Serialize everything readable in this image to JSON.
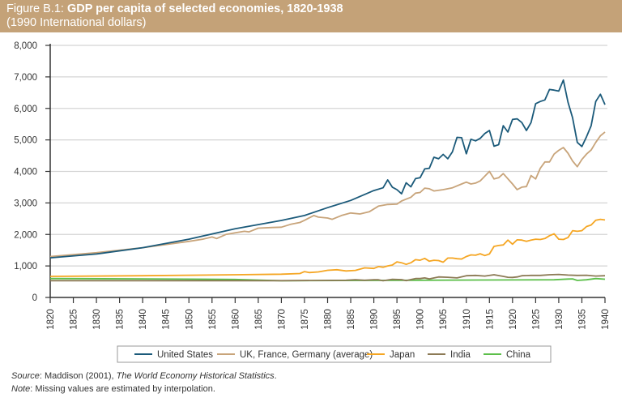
{
  "header": {
    "figure_label": "Figure B.1:",
    "title": "GDP per capita of selected economies, 1820-1938",
    "subtitle": "(1990 International dollars)",
    "background_color": "#c4a278"
  },
  "footer": {
    "source_label": "Source",
    "source_text_plain": ": Maddison (2001), ",
    "source_text_italic": "The World Economy Historical Statistics",
    "source_text_end": ".",
    "note_label": "Note",
    "note_text": ": Missing values are estimated by interpolation."
  },
  "chart_data": {
    "type": "line",
    "title": "GDP per capita of selected economies, 1820-1938",
    "subtitle": "(1990 International dollars)",
    "xlabel": "",
    "ylabel": "",
    "xlim": [
      1820,
      1940
    ],
    "ylim": [
      0,
      8000
    ],
    "yticks": [
      0,
      1000,
      2000,
      3000,
      4000,
      5000,
      6000,
      7000,
      8000
    ],
    "ytick_labels": [
      "0",
      "1,000",
      "2,000",
      "3,000",
      "4,000",
      "5,000",
      "6,000",
      "7,000",
      "8,000"
    ],
    "xticks": [
      1820,
      1825,
      1830,
      1835,
      1840,
      1845,
      1850,
      1855,
      1860,
      1865,
      1870,
      1875,
      1880,
      1885,
      1890,
      1895,
      1900,
      1905,
      1910,
      1915,
      1920,
      1925,
      1930,
      1935,
      1940
    ],
    "xtick_labels": [
      "1820",
      "1825",
      "1830",
      "1835",
      "1840",
      "1845",
      "1850",
      "1855",
      "1860",
      "1865",
      "1870",
      "1875",
      "1880",
      "1885",
      "1890",
      "1895",
      "1900",
      "1905",
      "1910",
      "1915",
      "1920",
      "1925",
      "1930",
      "1935",
      "1940"
    ],
    "grid": "horizontal",
    "legend_position": "bottom",
    "series": [
      {
        "name": "United States",
        "color": "#1b5a7a",
        "points": [
          [
            1820,
            1257
          ],
          [
            1830,
            1380
          ],
          [
            1840,
            1580
          ],
          [
            1850,
            1849
          ],
          [
            1860,
            2180
          ],
          [
            1870,
            2445
          ],
          [
            1875,
            2600
          ],
          [
            1880,
            2850
          ],
          [
            1885,
            3080
          ],
          [
            1890,
            3392
          ],
          [
            1892,
            3480
          ],
          [
            1893,
            3730
          ],
          [
            1894,
            3500
          ],
          [
            1895,
            3420
          ],
          [
            1896,
            3290
          ],
          [
            1897,
            3640
          ],
          [
            1898,
            3510
          ],
          [
            1899,
            3770
          ],
          [
            1900,
            3800
          ],
          [
            1901,
            4080
          ],
          [
            1902,
            4100
          ],
          [
            1903,
            4450
          ],
          [
            1904,
            4400
          ],
          [
            1905,
            4540
          ],
          [
            1906,
            4400
          ],
          [
            1907,
            4620
          ],
          [
            1908,
            5080
          ],
          [
            1909,
            5070
          ],
          [
            1910,
            4560
          ],
          [
            1911,
            5020
          ],
          [
            1912,
            4970
          ],
          [
            1913,
            5050
          ],
          [
            1914,
            5200
          ],
          [
            1915,
            5300
          ],
          [
            1916,
            4800
          ],
          [
            1917,
            4850
          ],
          [
            1918,
            5450
          ],
          [
            1919,
            5250
          ],
          [
            1920,
            5650
          ],
          [
            1921,
            5670
          ],
          [
            1922,
            5550
          ],
          [
            1923,
            5300
          ],
          [
            1924,
            5550
          ],
          [
            1925,
            6150
          ],
          [
            1926,
            6220
          ],
          [
            1927,
            6270
          ],
          [
            1928,
            6600
          ],
          [
            1929,
            6580
          ],
          [
            1930,
            6550
          ],
          [
            1931,
            6900
          ],
          [
            1932,
            6200
          ],
          [
            1933,
            5700
          ],
          [
            1934,
            4920
          ],
          [
            1935,
            4790
          ],
          [
            1936,
            5100
          ],
          [
            1937,
            5450
          ],
          [
            1938,
            6220
          ],
          [
            1939,
            6450
          ],
          [
            1940,
            6120
          ]
        ]
      },
      {
        "name": "UK, France, Germany (average)",
        "color": "#c8a47a",
        "points": [
          [
            1820,
            1300
          ],
          [
            1830,
            1420
          ],
          [
            1840,
            1580
          ],
          [
            1850,
            1780
          ],
          [
            1853,
            1850
          ],
          [
            1855,
            1920
          ],
          [
            1856,
            1870
          ],
          [
            1858,
            2000
          ],
          [
            1860,
            2050
          ],
          [
            1862,
            2100
          ],
          [
            1863,
            2080
          ],
          [
            1865,
            2200
          ],
          [
            1868,
            2220
          ],
          [
            1870,
            2230
          ],
          [
            1872,
            2320
          ],
          [
            1874,
            2380
          ],
          [
            1875,
            2450
          ],
          [
            1877,
            2600
          ],
          [
            1878,
            2550
          ],
          [
            1880,
            2520
          ],
          [
            1881,
            2480
          ],
          [
            1883,
            2600
          ],
          [
            1885,
            2680
          ],
          [
            1887,
            2650
          ],
          [
            1889,
            2720
          ],
          [
            1891,
            2900
          ],
          [
            1893,
            2950
          ],
          [
            1895,
            2960
          ],
          [
            1896,
            3060
          ],
          [
            1897,
            3120
          ],
          [
            1898,
            3180
          ],
          [
            1899,
            3310
          ],
          [
            1900,
            3330
          ],
          [
            1901,
            3470
          ],
          [
            1902,
            3450
          ],
          [
            1903,
            3380
          ],
          [
            1905,
            3420
          ],
          [
            1907,
            3480
          ],
          [
            1909,
            3600
          ],
          [
            1910,
            3660
          ],
          [
            1911,
            3600
          ],
          [
            1912,
            3630
          ],
          [
            1913,
            3700
          ],
          [
            1915,
            4000
          ],
          [
            1916,
            3760
          ],
          [
            1917,
            3800
          ],
          [
            1918,
            3930
          ],
          [
            1920,
            3600
          ],
          [
            1921,
            3420
          ],
          [
            1922,
            3500
          ],
          [
            1923,
            3520
          ],
          [
            1924,
            3870
          ],
          [
            1925,
            3760
          ],
          [
            1926,
            4100
          ],
          [
            1927,
            4300
          ],
          [
            1928,
            4300
          ],
          [
            1929,
            4550
          ],
          [
            1930,
            4670
          ],
          [
            1931,
            4760
          ],
          [
            1932,
            4580
          ],
          [
            1933,
            4330
          ],
          [
            1934,
            4150
          ],
          [
            1935,
            4380
          ],
          [
            1936,
            4550
          ],
          [
            1937,
            4680
          ],
          [
            1938,
            4920
          ],
          [
            1939,
            5130
          ],
          [
            1940,
            5250
          ]
        ]
      },
      {
        "name": "Japan",
        "color": "#f5a623",
        "points": [
          [
            1820,
            669
          ],
          [
            1840,
            690
          ],
          [
            1860,
            720
          ],
          [
            1870,
            737
          ],
          [
            1874,
            760
          ],
          [
            1875,
            820
          ],
          [
            1876,
            790
          ],
          [
            1878,
            810
          ],
          [
            1880,
            863
          ],
          [
            1882,
            880
          ],
          [
            1884,
            840
          ],
          [
            1886,
            860
          ],
          [
            1888,
            940
          ],
          [
            1890,
            920
          ],
          [
            1891,
            980
          ],
          [
            1892,
            960
          ],
          [
            1893,
            1000
          ],
          [
            1894,
            1030
          ],
          [
            1895,
            1130
          ],
          [
            1896,
            1100
          ],
          [
            1897,
            1050
          ],
          [
            1898,
            1100
          ],
          [
            1899,
            1200
          ],
          [
            1900,
            1180
          ],
          [
            1901,
            1240
          ],
          [
            1902,
            1150
          ],
          [
            1903,
            1180
          ],
          [
            1904,
            1170
          ],
          [
            1905,
            1120
          ],
          [
            1906,
            1250
          ],
          [
            1907,
            1250
          ],
          [
            1908,
            1230
          ],
          [
            1909,
            1220
          ],
          [
            1910,
            1300
          ],
          [
            1911,
            1350
          ],
          [
            1912,
            1340
          ],
          [
            1913,
            1387
          ],
          [
            1914,
            1330
          ],
          [
            1915,
            1380
          ],
          [
            1916,
            1620
          ],
          [
            1917,
            1650
          ],
          [
            1918,
            1668
          ],
          [
            1919,
            1820
          ],
          [
            1920,
            1690
          ],
          [
            1921,
            1830
          ],
          [
            1922,
            1820
          ],
          [
            1923,
            1780
          ],
          [
            1924,
            1820
          ],
          [
            1925,
            1850
          ],
          [
            1926,
            1840
          ],
          [
            1927,
            1870
          ],
          [
            1928,
            1960
          ],
          [
            1929,
            2020
          ],
          [
            1930,
            1850
          ],
          [
            1931,
            1840
          ],
          [
            1932,
            1900
          ],
          [
            1933,
            2120
          ],
          [
            1934,
            2100
          ],
          [
            1935,
            2120
          ],
          [
            1936,
            2250
          ],
          [
            1937,
            2300
          ],
          [
            1938,
            2450
          ],
          [
            1939,
            2480
          ],
          [
            1940,
            2460
          ]
        ]
      },
      {
        "name": "India",
        "color": "#8c7a55",
        "points": [
          [
            1820,
            533
          ],
          [
            1870,
            533
          ],
          [
            1884,
            545
          ],
          [
            1886,
            560
          ],
          [
            1888,
            545
          ],
          [
            1890,
            560
          ],
          [
            1891,
            560
          ],
          [
            1892,
            530
          ],
          [
            1894,
            575
          ],
          [
            1896,
            565
          ],
          [
            1897,
            535
          ],
          [
            1899,
            600
          ],
          [
            1900,
            600
          ],
          [
            1901,
            620
          ],
          [
            1902,
            590
          ],
          [
            1904,
            650
          ],
          [
            1906,
            640
          ],
          [
            1908,
            620
          ],
          [
            1910,
            690
          ],
          [
            1912,
            700
          ],
          [
            1914,
            680
          ],
          [
            1916,
            720
          ],
          [
            1918,
            670
          ],
          [
            1919,
            640
          ],
          [
            1920,
            635
          ],
          [
            1921,
            650
          ],
          [
            1922,
            690
          ],
          [
            1923,
            695
          ],
          [
            1924,
            700
          ],
          [
            1926,
            700
          ],
          [
            1928,
            720
          ],
          [
            1930,
            730
          ],
          [
            1932,
            710
          ],
          [
            1934,
            700
          ],
          [
            1936,
            705
          ],
          [
            1938,
            680
          ],
          [
            1940,
            690
          ]
        ]
      },
      {
        "name": "China",
        "color": "#5cbf4a",
        "points": [
          [
            1820,
            600
          ],
          [
            1840,
            590
          ],
          [
            1860,
            570
          ],
          [
            1870,
            530
          ],
          [
            1890,
            540
          ],
          [
            1913,
            552
          ],
          [
            1929,
            562
          ],
          [
            1932,
            585
          ],
          [
            1933,
            590
          ],
          [
            1934,
            540
          ],
          [
            1936,
            560
          ],
          [
            1938,
            600
          ],
          [
            1940,
            580
          ]
        ]
      }
    ]
  }
}
